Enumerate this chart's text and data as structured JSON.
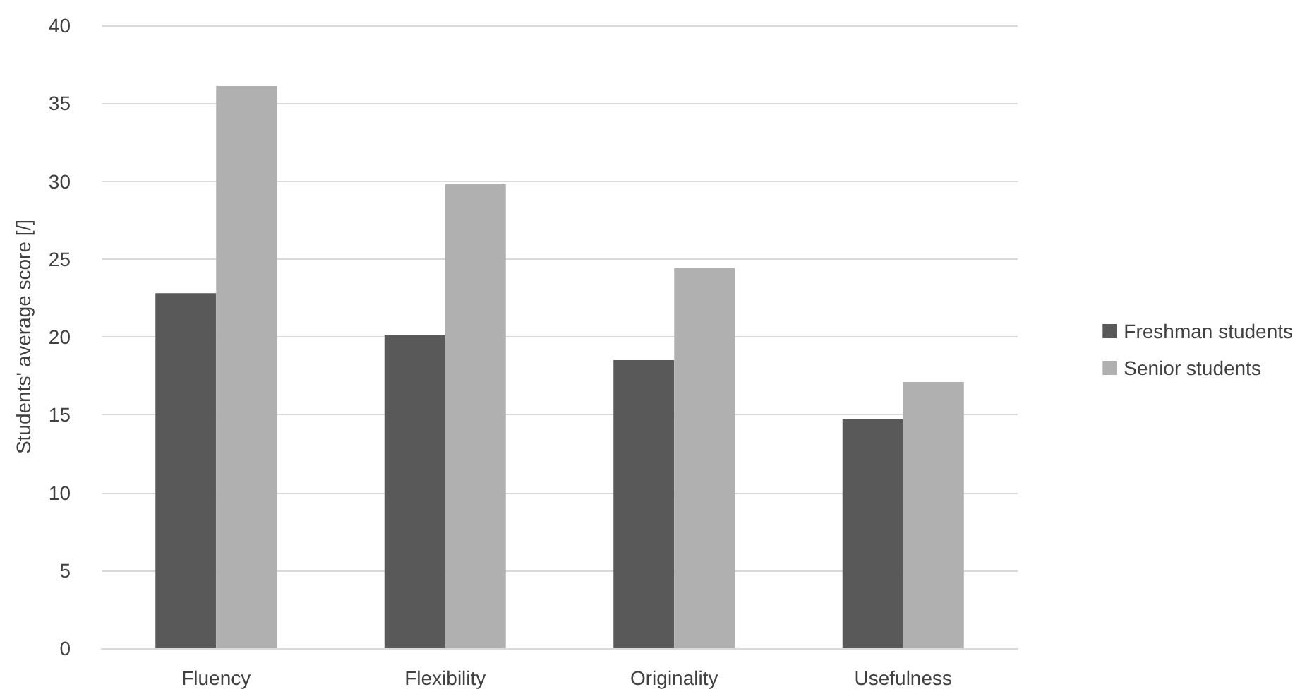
{
  "chart_data": {
    "type": "bar",
    "ylabel": "Students' average score [/]",
    "categories": [
      "Fluency",
      "Flexibility",
      "Originality",
      "Usefulness"
    ],
    "series": [
      {
        "name": "Freshman students",
        "color": "#595959",
        "values": [
          22.8,
          20.1,
          18.5,
          14.7
        ]
      },
      {
        "name": "Senior students",
        "color": "#b0b0b0",
        "values": [
          36.1,
          29.8,
          24.4,
          17.1
        ]
      }
    ],
    "ylim": [
      0,
      40
    ],
    "yticks": [
      0,
      5,
      10,
      15,
      20,
      25,
      30,
      35,
      40
    ],
    "grid": "y",
    "legend": "right"
  }
}
